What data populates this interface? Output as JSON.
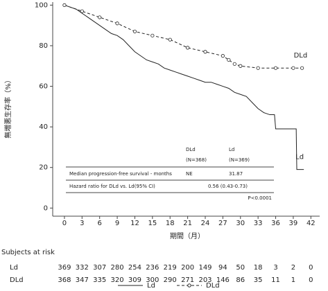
{
  "chart_data": {
    "type": "line",
    "y_label": "無増悪生存率（%）",
    "x_label": "期間（月）",
    "xlim": [
      -2,
      43.5
    ],
    "ylim": [
      -4,
      101.5
    ],
    "xticks": [
      0,
      3,
      6,
      9,
      12,
      15,
      18,
      21,
      24,
      27,
      30,
      33,
      36,
      39,
      42
    ],
    "yticks": [
      0,
      20,
      40,
      60,
      80,
      100
    ],
    "series": [
      {
        "name": "Ld",
        "color": "#222222",
        "dash": "none",
        "marker": "none",
        "x": [
          0,
          1,
          2,
          3,
          4,
          5,
          6,
          7,
          8,
          9,
          10,
          11,
          12,
          13,
          14,
          15,
          16,
          17,
          18,
          19,
          20,
          21,
          22,
          23,
          24,
          25,
          26,
          27,
          28,
          29,
          30,
          31,
          32,
          33,
          34,
          35,
          35.8,
          36,
          39.5,
          39.6,
          40.8
        ],
        "values": [
          100,
          99,
          98,
          96,
          94,
          92,
          90,
          88,
          86,
          85,
          83,
          80,
          77,
          75,
          73,
          72,
          71,
          69,
          68,
          67,
          66,
          65,
          64,
          63,
          62,
          62,
          61,
          60,
          59,
          57,
          56,
          55,
          52,
          49,
          47,
          46,
          46,
          39,
          39,
          19,
          19
        ]
      },
      {
        "name": "DLd",
        "color": "#222222",
        "dash": "4,3",
        "marker": "circle",
        "x": [
          0,
          3,
          6,
          9,
          12,
          15,
          18,
          21,
          24,
          27,
          28,
          29,
          30,
          33,
          36,
          39,
          40.5
        ],
        "values": [
          100,
          97,
          94,
          91,
          87,
          85,
          83,
          79,
          77,
          75,
          73,
          71,
          70,
          69,
          69,
          69,
          69
        ]
      }
    ],
    "stats_table": {
      "header": [
        "DLd",
        "Ld"
      ],
      "n": [
        "(N=368)",
        "(N=369)"
      ],
      "rows": [
        [
          "Median progression-free survival - months",
          "NE",
          "31.87"
        ],
        [
          "Hazard ratio for DLd vs. Ld(95% CI)",
          "0.56  (0.43-0.73)"
        ]
      ],
      "p_value": "P<0.0001"
    },
    "risk_table": {
      "title": "Subjects at risk",
      "rows": [
        {
          "name": "Ld",
          "values": [
            369,
            332,
            307,
            280,
            254,
            236,
            219,
            200,
            149,
            94,
            50,
            18,
            3,
            2,
            0
          ]
        },
        {
          "name": "DLd",
          "values": [
            368,
            347,
            335,
            320,
            309,
            300,
            290,
            271,
            203,
            146,
            86,
            35,
            11,
            1,
            0
          ]
        }
      ]
    }
  }
}
